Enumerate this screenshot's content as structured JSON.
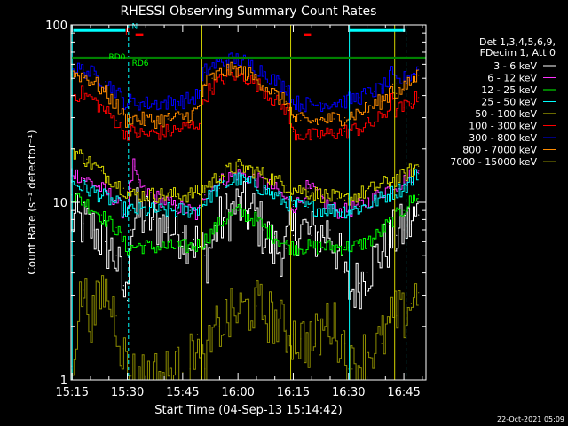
{
  "chart_data": {
    "type": "line",
    "title": "RHESSI Observing Summary Count Rates",
    "xlabel": "Start Time (04-Sep-13 15:14:42)",
    "ylabel": "Count Rate (s⁻¹ detector⁻¹)",
    "yscale": "log",
    "ylim": [
      1,
      100
    ],
    "xlim": [
      -0.3,
      96
    ],
    "x_unit": "minutes after 15:15",
    "x_ticks": [
      {
        "value": 0,
        "label": "15:15"
      },
      {
        "value": 15,
        "label": "15:30"
      },
      {
        "value": 30,
        "label": "15:45"
      },
      {
        "value": 45,
        "label": "16:00"
      },
      {
        "value": 60,
        "label": "16:15"
      },
      {
        "value": 75,
        "label": "16:30"
      },
      {
        "value": 90,
        "label": "16:45"
      }
    ],
    "y_ticks": [
      {
        "value": 1,
        "label": "1"
      },
      {
        "value": 10,
        "label": "10"
      },
      {
        "value": 100,
        "label": "100"
      }
    ],
    "legend": {
      "position": "right",
      "header": [
        "Det 1,3,4,5,6,9,",
        "FDecim 1, Att 0"
      ],
      "entries": [
        {
          "label": "3 - 6 keV",
          "color": "#ffffff"
        },
        {
          "label": "6 - 12 keV",
          "color": "#ff33ff"
        },
        {
          "label": "12 - 25 keV",
          "color": "#00ff00"
        },
        {
          "label": "25 - 50 keV",
          "color": "#00ffff"
        },
        {
          "label": "50 - 100 keV",
          "color": "#d4d400"
        },
        {
          "label": "100 - 300 keV",
          "color": "#ff0000"
        },
        {
          "label": "300 - 800 keV",
          "color": "#0000ff"
        },
        {
          "label": "800 - 7000 keV",
          "color": "#ff8c00"
        },
        {
          "label": "7000 - 15000 keV",
          "color": "#8b8b00"
        }
      ]
    },
    "series": [
      {
        "name": "3 - 6 keV",
        "color": "#000000",
        "x": [
          0,
          3,
          6,
          9,
          12,
          14,
          15,
          16,
          18,
          22,
          26,
          30,
          33,
          35,
          36,
          37,
          40,
          45,
          50,
          52,
          55,
          58,
          60,
          62,
          65,
          68,
          70,
          72,
          74,
          75,
          76,
          78,
          80,
          83,
          86,
          88,
          90,
          92,
          94
        ],
        "y": [
          8,
          7.6,
          7,
          6,
          5,
          3.4,
          2.8,
          7,
          8.5,
          8,
          7.2,
          6.8,
          6.2,
          5.5,
          5,
          5,
          7.5,
          9.5,
          8.5,
          7,
          5.5,
          5.5,
          6.5,
          7.5,
          6.5,
          6.5,
          7,
          5.6,
          4,
          3.3,
          3.2,
          3.5,
          4,
          5,
          5.8,
          6.5,
          7,
          7.5,
          8.5
        ]
      },
      {
        "name": "6 - 12 keV",
        "color": "#ff33ff",
        "x": [
          0,
          4,
          8,
          12,
          14,
          15,
          16,
          17,
          18,
          20,
          24,
          28,
          32,
          34,
          35,
          36,
          40,
          45,
          50,
          55,
          58,
          60,
          62,
          64,
          66,
          68,
          70,
          72,
          74,
          75,
          78,
          82,
          86,
          90,
          92,
          94
        ],
        "y": [
          15,
          13.5,
          12,
          10.5,
          9,
          8.5,
          12,
          16,
          13,
          11.5,
          10.5,
          9.5,
          9,
          8.5,
          9,
          11,
          13,
          14.5,
          13.5,
          12,
          10.5,
          9.5,
          10,
          12,
          11.5,
          10.5,
          9.5,
          9,
          8.8,
          9,
          9.5,
          10.5,
          12,
          13,
          14,
          15
        ]
      },
      {
        "name": "12 - 25 keV",
        "color": "#00ff00",
        "x": [
          0,
          4,
          8,
          12,
          14,
          15,
          16,
          18,
          22,
          26,
          30,
          34,
          36,
          40,
          45,
          50,
          55,
          58,
          60,
          64,
          68,
          72,
          74,
          75,
          78,
          82,
          86,
          90,
          92,
          94
        ],
        "y": [
          11,
          10,
          8.5,
          7.2,
          6.2,
          5.5,
          5.5,
          5.7,
          5.6,
          5.6,
          5.6,
          5.7,
          6,
          7.5,
          9,
          8,
          6.5,
          5.8,
          5.6,
          5.6,
          5.6,
          5.6,
          5.6,
          5.6,
          5.7,
          6.2,
          7.5,
          9,
          10,
          11
        ]
      },
      {
        "name": "25 - 50 keV",
        "color": "#00ffff",
        "x": [
          0,
          4,
          8,
          12,
          14,
          15,
          16,
          20,
          24,
          28,
          32,
          35,
          36,
          40,
          45,
          50,
          55,
          58,
          60,
          64,
          68,
          72,
          74,
          75,
          78,
          82,
          86,
          90,
          92,
          94
        ],
        "y": [
          13,
          12,
          11,
          10,
          9.2,
          9,
          9,
          9,
          9,
          9,
          9,
          9.3,
          10,
          12,
          13.5,
          12.5,
          11,
          10,
          9.7,
          9.4,
          9.2,
          9,
          9,
          9,
          9.2,
          10,
          11,
          12,
          13,
          14.5
        ]
      },
      {
        "name": "50 - 100 keV",
        "color": "#d4d400",
        "x": [
          0,
          4,
          8,
          12,
          14,
          15,
          16,
          20,
          24,
          28,
          32,
          35,
          36,
          40,
          45,
          50,
          55,
          58,
          60,
          64,
          68,
          72,
          74,
          75,
          78,
          82,
          86,
          90,
          92,
          94
        ],
        "y": [
          20,
          17.5,
          15,
          13,
          12,
          11.5,
          11,
          11,
          11,
          11,
          11,
          11.5,
          12,
          14,
          16,
          15,
          13.5,
          12.5,
          12,
          11.5,
          11,
          10.5,
          10.3,
          10.5,
          11,
          12,
          13,
          14,
          15,
          16
        ]
      },
      {
        "name": "100 - 300 keV",
        "color": "#ff0000",
        "x": [
          0,
          3,
          6,
          9,
          12,
          14,
          15,
          16,
          18,
          20,
          23,
          26,
          30,
          33,
          35,
          36,
          38,
          42,
          45,
          48,
          52,
          55,
          57,
          58,
          59,
          60,
          62,
          65,
          68,
          71,
          74,
          76,
          78,
          80,
          82,
          84,
          86,
          87,
          88,
          90,
          92,
          94
        ],
        "y": [
          40,
          41,
          38,
          33,
          29,
          25.5,
          24.5,
          25,
          24.5,
          24,
          24.5,
          25,
          26,
          27,
          28.5,
          38,
          44,
          51,
          52.5,
          50,
          44,
          38,
          35,
          34,
          33.5,
          25,
          24,
          23.5,
          24,
          24.5,
          25,
          25.5,
          26,
          27,
          28,
          30,
          33,
          38,
          33,
          34,
          36,
          39
        ]
      },
      {
        "name": "300 - 800 keV",
        "color": "#0000ff",
        "x": [
          0,
          3,
          6,
          9,
          12,
          14,
          15,
          16,
          18,
          20,
          23,
          26,
          30,
          33,
          35,
          36,
          38,
          42,
          45,
          48,
          52,
          55,
          57,
          58,
          59,
          60,
          62,
          65,
          68,
          71,
          74,
          76,
          78,
          80,
          82,
          84,
          86,
          87,
          88,
          90,
          92,
          94
        ],
        "y": [
          56,
          56,
          53,
          48,
          43,
          38,
          36,
          37,
          36.5,
          36,
          36,
          36.5,
          37,
          38.5,
          41,
          54,
          58,
          63,
          64,
          61,
          55,
          49,
          46,
          45,
          44,
          37,
          36,
          35.5,
          36,
          36.5,
          37,
          38,
          39,
          40.5,
          42,
          44,
          47,
          53,
          47,
          49,
          52,
          56
        ]
      },
      {
        "name": "800 - 7000 keV",
        "color": "#ff8c00",
        "x": [
          0,
          3,
          6,
          9,
          12,
          14,
          15,
          16,
          18,
          20,
          23,
          26,
          30,
          33,
          35,
          36,
          38,
          42,
          45,
          48,
          52,
          55,
          57,
          58,
          59,
          60,
          62,
          65,
          68,
          71,
          74,
          76,
          78,
          80,
          82,
          84,
          86,
          87,
          88,
          90,
          92,
          94
        ],
        "y": [
          53,
          52,
          48,
          42,
          36,
          31,
          29,
          30,
          29.5,
          29,
          29,
          29.5,
          30,
          31.5,
          34,
          46,
          50,
          55,
          56,
          53,
          47,
          41,
          38,
          37,
          36,
          30,
          29,
          28.5,
          29,
          29.5,
          30,
          31,
          32,
          33.5,
          35,
          37,
          40,
          46,
          41,
          43,
          47,
          52
        ]
      },
      {
        "name": "7000 - 15000 keV",
        "color": "#8b8b00",
        "x": [
          0,
          3,
          6,
          9,
          12,
          14,
          15,
          16,
          20,
          24,
          28,
          30,
          32,
          34,
          35,
          36,
          40,
          45,
          50,
          55,
          58,
          60,
          62,
          66,
          70,
          74,
          75,
          76,
          80,
          84,
          88,
          90,
          92,
          94
        ],
        "y": [
          1.2,
          3.2,
          2.2,
          3.3,
          2.3,
          1.5,
          1.2,
          1.05,
          1.05,
          1.05,
          1.1,
          1.1,
          1.15,
          1.8,
          1.2,
          1.15,
          2,
          2.4,
          2.6,
          2.2,
          1.9,
          1.8,
          1.7,
          1.6,
          2.2,
          1.6,
          1.15,
          1.15,
          1.4,
          1.6,
          2.3,
          2.2,
          2.7,
          3.1
        ]
      }
    ],
    "annotations": {
      "flag_labels": [
        {
          "text": "RD0",
          "color": "#00ff00",
          "x": 12.2,
          "y": 64
        },
        {
          "text": "RD6",
          "color": "#00ff00",
          "x": 18.5,
          "y": 59
        },
        {
          "text": "F",
          "color": "#ff0000",
          "x": 15,
          "y": 88
        },
        {
          "text": "N",
          "color": "#00ffff",
          "x": 17,
          "y": 95
        }
      ],
      "vertical_lines": [
        {
          "x": 0,
          "color": "#00ffff",
          "style": "solid"
        },
        {
          "x": 15.3,
          "color": "#00ffff",
          "style": "dashed"
        },
        {
          "x": 75.2,
          "color": "#00ffff",
          "style": "solid"
        },
        {
          "x": 90.6,
          "color": "#00ffff",
          "style": "dashed"
        },
        {
          "x": 35.2,
          "color": "#d4d400",
          "style": "solid"
        },
        {
          "x": 59.3,
          "color": "#d4d400",
          "style": "solid"
        },
        {
          "x": 87.5,
          "color": "#d4d400",
          "style": "solid"
        }
      ],
      "bars": [
        {
          "color": "#00ffff",
          "x1": 0.3,
          "x2": 14.5,
          "y": 93
        },
        {
          "color": "#00ffff",
          "x1": 75.2,
          "x2": 90.3,
          "y": 93
        },
        {
          "color": "#ff0000",
          "x1": 17.2,
          "x2": 19.3,
          "y": 88
        },
        {
          "color": "#ff0000",
          "x1": 63,
          "x2": 64.8,
          "y": 88
        },
        {
          "color": "#008000",
          "x1": 0,
          "x2": 96,
          "y": 65
        }
      ]
    },
    "footer_text": "22-Oct-2021 05:09"
  }
}
